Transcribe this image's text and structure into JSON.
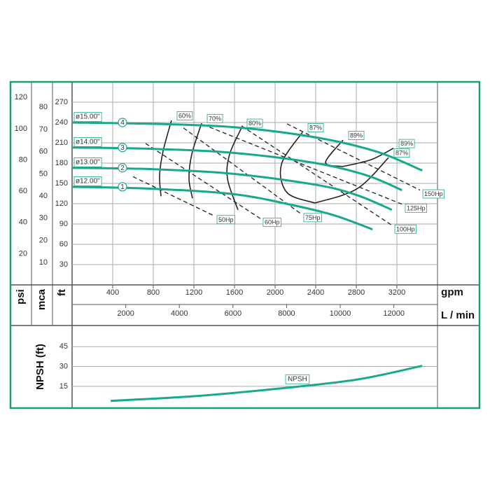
{
  "chart_data": [
    {
      "type": "line",
      "x_label": "gpm",
      "x2_label": "L / min",
      "y_label": "ft",
      "y_psi_label": "psi",
      "y_mca_label": "mca",
      "xlim": [
        0,
        3600
      ],
      "xticks": [
        400,
        800,
        1200,
        1600,
        2000,
        2400,
        2800,
        3200
      ],
      "x2lim": [
        0,
        13627
      ],
      "x2ticks": [
        2000,
        4000,
        6000,
        8000,
        10000,
        12000
      ],
      "ylim": [
        0,
        300
      ],
      "yticks": [
        30,
        60,
        90,
        120,
        150,
        180,
        210,
        240,
        270
      ],
      "psi_lim": [
        0,
        130
      ],
      "psi_ticks": [
        20,
        40,
        60,
        80,
        100,
        120
      ],
      "mca_lim": [
        0,
        91.4
      ],
      "mca_ticks": [
        10,
        20,
        30,
        40,
        50,
        60,
        70,
        80
      ],
      "grid": true,
      "series": [
        {
          "name": "ø15.00\"",
          "curve": "4",
          "color": "#17a98a",
          "x": [
            0,
            800,
            1600,
            2400,
            3000,
            3450
          ],
          "values": [
            240,
            238,
            233,
            218,
            197,
            169
          ]
        },
        {
          "name": "ø14.00\"",
          "curve": "3",
          "color": "#17a98a",
          "x": [
            0,
            800,
            1600,
            2400,
            2900,
            3250
          ],
          "values": [
            203,
            201,
            195,
            180,
            162,
            140
          ]
        },
        {
          "name": "ø13.00\"",
          "curve": "2",
          "color": "#17a98a",
          "x": [
            0,
            800,
            1600,
            2400,
            2800,
            3150
          ],
          "values": [
            173,
            171,
            164,
            148,
            133,
            111
          ]
        },
        {
          "name": "ø12.00\"",
          "curve": "1",
          "color": "#17a98a",
          "x": [
            0,
            800,
            1600,
            2200,
            2600,
            2960
          ],
          "values": [
            145,
            142,
            134,
            117,
            102,
            82
          ]
        }
      ],
      "power_lines": [
        {
          "name": "50Hp",
          "x": [
            600,
            1400
          ],
          "values": [
            160,
            102
          ]
        },
        {
          "name": "60Hp",
          "x": [
            724,
            1855
          ],
          "values": [
            209,
            98
          ]
        },
        {
          "name": "75Hp",
          "x": [
            1097,
            2255
          ],
          "values": [
            232,
            105
          ]
        },
        {
          "name": "100Hp",
          "x": [
            1669,
            3152
          ],
          "values": [
            235,
            88
          ]
        },
        {
          "name": "125Hp",
          "x": [
            1290,
            3255
          ],
          "values": [
            237,
            119
          ]
        },
        {
          "name": "150Hp",
          "x": [
            2117,
            3428
          ],
          "values": [
            238,
            140
          ]
        }
      ],
      "efficiency_contours": [
        {
          "name": "60%",
          "x": [
            979,
            897,
            862,
            876
          ],
          "values": [
            243,
            198,
            162,
            131
          ]
        },
        {
          "name": "70%",
          "x": [
            1276,
            1179,
            1152,
            1186
          ],
          "values": [
            239,
            193,
            157,
            128
          ]
        },
        {
          "name": "80%",
          "x": [
            1669,
            1552,
            1531,
            1634
          ],
          "values": [
            232,
            193,
            157,
            111
          ]
        },
        {
          "name": "87%",
          "x": [
            2269,
            2062,
            2117,
            2393
          ],
          "values": [
            225.5,
            178,
            136.5,
            121
          ]
        },
        {
          "name": "89%",
          "x": [
            2669,
            2497,
            2669
          ],
          "values": [
            214,
            181,
            175
          ]
        },
        {
          "name": "89%",
          "x": [
            2669,
            2945,
            3166
          ],
          "values": [
            175,
            185,
            202
          ]
        },
        {
          "name": "87%",
          "x": [
            2393,
            2807,
            3117
          ],
          "values": [
            121,
            142,
            188
          ]
        }
      ]
    },
    {
      "type": "line",
      "y_label": "NPSH (ft)",
      "xlim": [
        0,
        3600
      ],
      "ylim": [
        -1.5,
        61
      ],
      "yticks": [
        15,
        30,
        45
      ],
      "grid": true,
      "series": [
        {
          "name": "NPSH",
          "color": "#17a98a",
          "x": [
            380,
            1200,
            2000,
            2800,
            3450
          ],
          "values": [
            4,
            7.5,
            13,
            20,
            30.5
          ]
        }
      ]
    }
  ]
}
